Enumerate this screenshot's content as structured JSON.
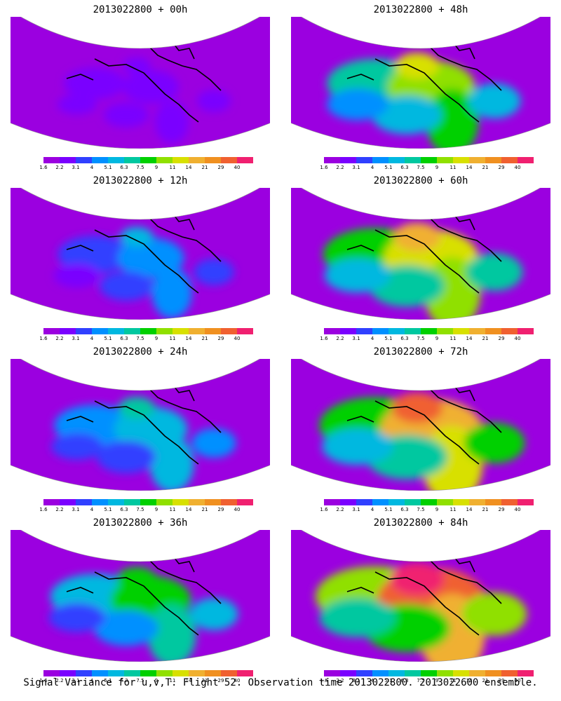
{
  "panels": [
    {
      "title": "2013022800 + 00h",
      "level": 0.1
    },
    {
      "title": "2013022800 + 48h",
      "level": 0.55
    },
    {
      "title": "2013022800 + 12h",
      "level": 0.25
    },
    {
      "title": "2013022800 + 60h",
      "level": 0.65
    },
    {
      "title": "2013022800 + 24h",
      "level": 0.35
    },
    {
      "title": "2013022800 + 72h",
      "level": 0.75
    },
    {
      "title": "2013022800 + 36h",
      "level": 0.45
    },
    {
      "title": "2013022800 + 84h",
      "level": 0.85
    }
  ],
  "colorbar": {
    "labels": [
      "1.6",
      "2.2",
      "3.1",
      "4",
      "5.1",
      "6.3",
      "7.5",
      "9",
      "11",
      "14",
      "21",
      "29",
      "40"
    ],
    "colors": [
      "#9b00e0",
      "#7a00ff",
      "#3040ff",
      "#0090ff",
      "#00b8e0",
      "#00c8a0",
      "#00d000",
      "#90e000",
      "#d8e000",
      "#f0b030",
      "#f09020",
      "#f06030",
      "#f02070"
    ]
  },
  "caption": "Signal Variance for u,v,T. Flight 52. Observation time 2013022800. 2013022600 ensemble."
}
